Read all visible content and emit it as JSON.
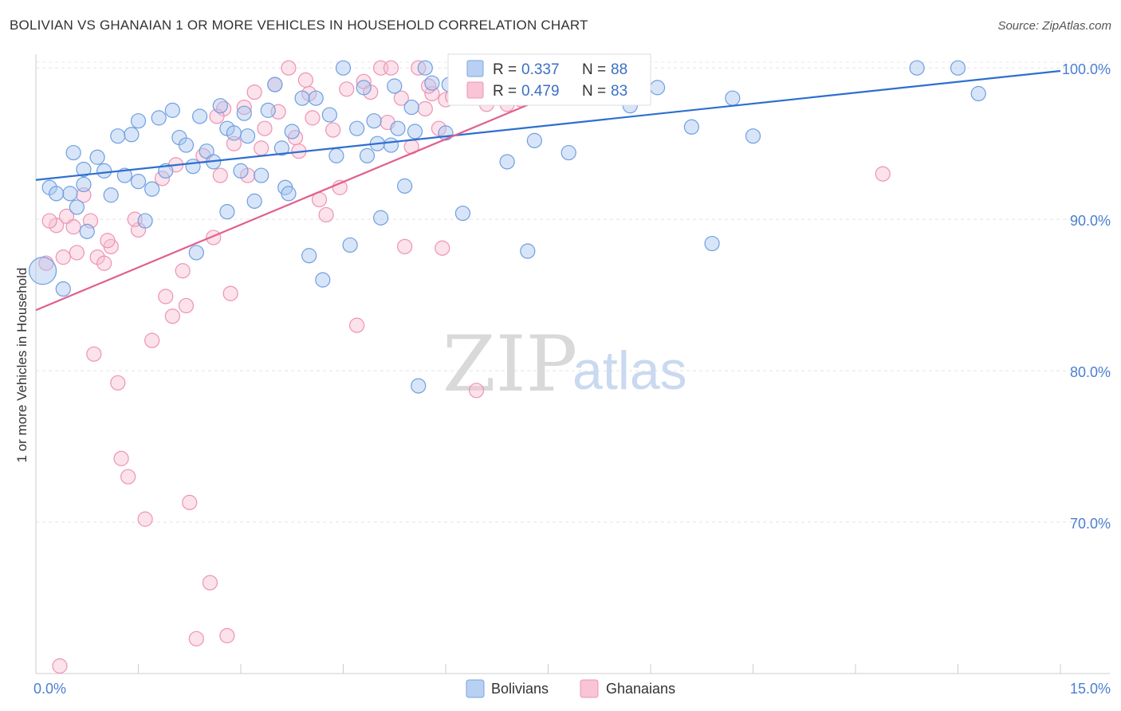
{
  "header": {
    "title": "BOLIVIAN VS GHANAIAN 1 OR MORE VEHICLES IN HOUSEHOLD CORRELATION CHART",
    "source": "Source: ZipAtlas.com"
  },
  "watermark": {
    "part1": "ZIP",
    "part2": "atlas"
  },
  "legend": {
    "series": [
      {
        "name": "Bolivians",
        "r_label": "R =",
        "r_value": "0.337",
        "n_label": "N =",
        "n_value": "88"
      },
      {
        "name": "Ghanaians",
        "r_label": "R =",
        "r_value": "0.479",
        "n_label": "N =",
        "n_value": "83"
      }
    ]
  },
  "chart_data": {
    "type": "scatter",
    "title": "BOLIVIAN VS GHANAIAN 1 OR MORE VEHICLES IN HOUSEHOLD CORRELATION CHART",
    "xlabel": "",
    "ylabel": "1 or more Vehicles in Household",
    "xlim": [
      0,
      15
    ],
    "ylim": [
      60,
      100.8
    ],
    "x_tick_labels": [
      "0.0%",
      "15.0%"
    ],
    "y_ticks": [
      {
        "value": 70,
        "label": "70.0%"
      },
      {
        "value": 80,
        "label": "80.0%"
      },
      {
        "value": 90,
        "label": "90.0%"
      },
      {
        "value": 100,
        "label": "100.0%"
      }
    ],
    "colors": {
      "bolivians": "#6f9fe0",
      "ghanaians": "#f19ab8",
      "blue_line": "#2d6fcf",
      "pink_line": "#e0608f"
    },
    "series": [
      {
        "name": "Bolivians",
        "trend": {
          "x0": 0,
          "y0": 92.6,
          "x1": 15,
          "y1": 99.8
        },
        "points": [
          [
            0.1,
            86.6
          ],
          [
            0.2,
            92.1
          ],
          [
            0.4,
            85.4
          ],
          [
            0.5,
            91.7
          ],
          [
            0.6,
            90.8
          ],
          [
            0.7,
            92.3
          ],
          [
            0.75,
            89.2
          ],
          [
            0.7,
            93.3
          ],
          [
            0.9,
            94.1
          ],
          [
            1.0,
            93.2
          ],
          [
            1.1,
            91.6
          ],
          [
            1.2,
            95.5
          ],
          [
            1.3,
            92.9
          ],
          [
            1.4,
            95.6
          ],
          [
            1.5,
            92.5
          ],
          [
            1.6,
            89.9
          ],
          [
            1.7,
            92.0
          ],
          [
            1.8,
            96.7
          ],
          [
            1.9,
            93.2
          ],
          [
            2.0,
            97.2
          ],
          [
            2.1,
            95.4
          ],
          [
            2.2,
            94.9
          ],
          [
            2.3,
            93.5
          ],
          [
            2.35,
            87.8
          ],
          [
            2.4,
            96.8
          ],
          [
            2.5,
            94.5
          ],
          [
            2.6,
            93.8
          ],
          [
            2.7,
            97.5
          ],
          [
            2.8,
            96.0
          ],
          [
            2.9,
            95.7
          ],
          [
            3.0,
            93.2
          ],
          [
            3.1,
            95.5
          ],
          [
            3.2,
            91.2
          ],
          [
            3.3,
            92.9
          ],
          [
            3.4,
            97.2
          ],
          [
            3.5,
            98.9
          ],
          [
            3.6,
            94.7
          ],
          [
            3.65,
            92.1
          ],
          [
            3.7,
            91.7
          ],
          [
            3.9,
            98.0
          ],
          [
            4.0,
            87.6
          ],
          [
            4.1,
            98.0
          ],
          [
            4.2,
            86.0
          ],
          [
            4.3,
            96.9
          ],
          [
            4.4,
            94.2
          ],
          [
            4.5,
            100.0
          ],
          [
            4.6,
            88.3
          ],
          [
            4.7,
            96.0
          ],
          [
            4.8,
            98.7
          ],
          [
            4.85,
            94.2
          ],
          [
            5.0,
            95.0
          ],
          [
            5.05,
            90.1
          ],
          [
            5.2,
            94.9
          ],
          [
            5.25,
            98.8
          ],
          [
            5.3,
            96.0
          ],
          [
            5.4,
            92.2
          ],
          [
            5.5,
            97.4
          ],
          [
            5.55,
            95.8
          ],
          [
            5.7,
            100.0
          ],
          [
            5.8,
            99.0
          ],
          [
            5.6,
            79.0
          ],
          [
            6.0,
            95.7
          ],
          [
            6.05,
            98.9
          ],
          [
            6.2,
            99.2
          ],
          [
            6.25,
            90.4
          ],
          [
            6.4,
            100.0
          ],
          [
            6.9,
            93.8
          ],
          [
            7.2,
            87.9
          ],
          [
            7.3,
            95.2
          ],
          [
            7.4,
            98.2
          ],
          [
            7.8,
            94.4
          ],
          [
            8.1,
            99.3
          ],
          [
            8.7,
            97.5
          ],
          [
            9.1,
            98.7
          ],
          [
            9.6,
            96.1
          ],
          [
            9.9,
            88.4
          ],
          [
            10.2,
            98.0
          ],
          [
            10.5,
            95.5
          ],
          [
            12.9,
            100.0
          ],
          [
            13.5,
            100.0
          ],
          [
            13.8,
            98.3
          ],
          [
            0.3,
            91.7
          ],
          [
            1.5,
            96.5
          ],
          [
            2.8,
            90.5
          ],
          [
            0.55,
            94.4
          ],
          [
            3.75,
            95.8
          ],
          [
            4.95,
            96.5
          ],
          [
            3.05,
            97.0
          ]
        ]
      },
      {
        "name": "Ghanaians",
        "trend": {
          "x0": 0,
          "y0": 84.0,
          "x1": 8.5,
          "y1": 100.0
        },
        "points": [
          [
            0.15,
            87.1
          ],
          [
            0.3,
            89.6
          ],
          [
            0.4,
            87.5
          ],
          [
            0.45,
            90.2
          ],
          [
            0.55,
            89.5
          ],
          [
            0.6,
            87.8
          ],
          [
            0.7,
            91.6
          ],
          [
            0.8,
            89.9
          ],
          [
            0.85,
            81.1
          ],
          [
            0.9,
            87.5
          ],
          [
            1.0,
            87.1
          ],
          [
            1.1,
            88.2
          ],
          [
            1.2,
            79.2
          ],
          [
            1.25,
            74.2
          ],
          [
            1.35,
            73.0
          ],
          [
            1.5,
            89.3
          ],
          [
            1.6,
            70.2
          ],
          [
            1.7,
            82.0
          ],
          [
            1.85,
            92.7
          ],
          [
            1.9,
            84.9
          ],
          [
            2.0,
            83.6
          ],
          [
            2.05,
            93.6
          ],
          [
            2.2,
            84.3
          ],
          [
            2.25,
            71.3
          ],
          [
            2.35,
            62.3
          ],
          [
            2.45,
            94.2
          ],
          [
            2.55,
            66.0
          ],
          [
            2.6,
            88.8
          ],
          [
            2.7,
            92.9
          ],
          [
            2.75,
            97.3
          ],
          [
            2.8,
            62.5
          ],
          [
            2.85,
            85.1
          ],
          [
            2.9,
            95.0
          ],
          [
            3.05,
            97.4
          ],
          [
            3.1,
            92.9
          ],
          [
            3.2,
            98.4
          ],
          [
            3.3,
            94.7
          ],
          [
            3.35,
            96.0
          ],
          [
            3.5,
            98.9
          ],
          [
            3.55,
            97.1
          ],
          [
            3.7,
            100.0
          ],
          [
            3.8,
            95.4
          ],
          [
            3.85,
            94.5
          ],
          [
            4.0,
            98.3
          ],
          [
            4.05,
            96.7
          ],
          [
            4.15,
            91.3
          ],
          [
            4.25,
            90.3
          ],
          [
            4.35,
            95.9
          ],
          [
            4.45,
            92.1
          ],
          [
            4.55,
            98.6
          ],
          [
            4.7,
            83.0
          ],
          [
            4.8,
            99.1
          ],
          [
            4.9,
            98.4
          ],
          [
            5.05,
            100.0
          ],
          [
            5.15,
            96.4
          ],
          [
            5.2,
            100.0
          ],
          [
            5.35,
            98.0
          ],
          [
            5.4,
            88.2
          ],
          [
            5.5,
            94.8
          ],
          [
            5.6,
            100.0
          ],
          [
            5.7,
            97.3
          ],
          [
            5.8,
            98.3
          ],
          [
            5.9,
            96.0
          ],
          [
            6.0,
            97.9
          ],
          [
            6.1,
            98.1
          ],
          [
            6.3,
            100.0
          ],
          [
            6.45,
            78.7
          ],
          [
            6.6,
            97.6
          ],
          [
            6.7,
            98.3
          ],
          [
            6.9,
            97.6
          ],
          [
            7.1,
            97.9
          ],
          [
            7.4,
            100.0
          ],
          [
            8.1,
            98.3
          ],
          [
            12.4,
            93.0
          ],
          [
            0.35,
            60.5
          ],
          [
            1.45,
            90.0
          ],
          [
            2.65,
            96.8
          ],
          [
            3.95,
            99.2
          ],
          [
            1.05,
            88.6
          ],
          [
            0.2,
            89.9
          ],
          [
            2.15,
            86.6
          ],
          [
            5.95,
            88.1
          ],
          [
            5.75,
            98.8
          ]
        ]
      }
    ]
  }
}
